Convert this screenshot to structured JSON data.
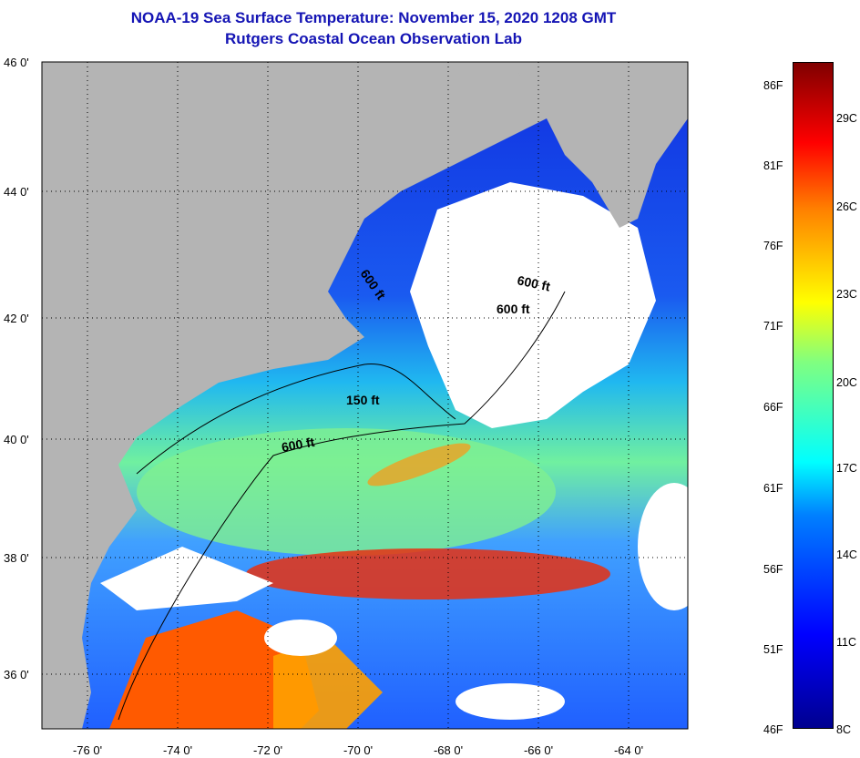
{
  "title": {
    "line1": "NOAA-19 Sea Surface Temperature:  November 15, 2020 1208 GMT",
    "line2": "Rutgers Coastal Ocean Observation Lab"
  },
  "lat_labels": [
    "46 0'",
    "44 0'",
    "42 0'",
    "40 0'",
    "38 0'",
    "36 0'"
  ],
  "lon_labels": [
    "-76 0'",
    "-74 0'",
    "-72 0'",
    "-70 0'",
    "-68 0'",
    "-66 0'",
    "-64 0'"
  ],
  "contours": [
    "600 ft",
    "600 ft",
    "600 ft",
    "150 ft",
    "600 ft"
  ],
  "colorbar": {
    "fahrenheit": [
      "86F",
      "81F",
      "76F",
      "71F",
      "66F",
      "61F",
      "56F",
      "51F",
      "46F"
    ],
    "celsius": [
      "29C",
      "26C",
      "23C",
      "20C",
      "17C",
      "14C",
      "11C",
      "8C"
    ]
  },
  "colors": {
    "land": "#b4b4b4",
    "cloud": "#ffffff",
    "title": "#1414b4"
  }
}
